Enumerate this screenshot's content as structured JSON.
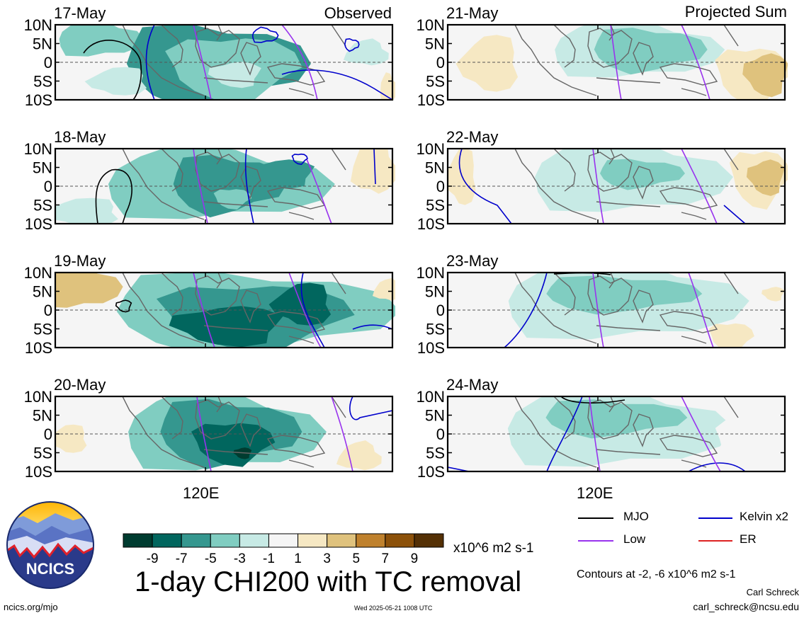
{
  "figure": {
    "title": "1-day CHI200 with TC removal",
    "subtitle_observed": "Observed",
    "subtitle_projected": "Projected Sum",
    "lon_label": "120E",
    "lat_ticks": [
      "10N",
      "5N",
      "0",
      "5S",
      "10S"
    ],
    "observed_panels": [
      {
        "date": "17-May"
      },
      {
        "date": "18-May"
      },
      {
        "date": "19-May"
      },
      {
        "date": "20-May"
      }
    ],
    "projected_panels": [
      {
        "date": "21-May"
      },
      {
        "date": "22-May"
      },
      {
        "date": "23-May"
      },
      {
        "date": "24-May"
      }
    ],
    "colorbar": {
      "labels": [
        "-9",
        "-7",
        "-5",
        "-3",
        "-1",
        "1",
        "3",
        "5",
        "7",
        "9"
      ],
      "colors": [
        "#003c30",
        "#01665e",
        "#35978f",
        "#80cdc1",
        "#c7eae5",
        "#f5f5f5",
        "#f6e8c3",
        "#dfc27d",
        "#bf812d",
        "#8c510a",
        "#543005"
      ],
      "units": "x10^6 m2 s-1"
    },
    "legend": [
      {
        "label": "MJO",
        "color": "#000000"
      },
      {
        "label": "Kelvin x2",
        "color": "#0000cc"
      },
      {
        "label": "Low",
        "color": "#9933ee"
      },
      {
        "label": "ER",
        "color": "#dd2222"
      }
    ],
    "contours_note": "Contours at -2, -6 x10^6 m2 s-1",
    "author": "Carl Schreck",
    "email": "carl_schreck@ncsu.edu",
    "site": "ncics.org/mjo",
    "timestamp": "Wed 2025-05-21 1008 UTC",
    "logo_text": "NCICS"
  }
}
